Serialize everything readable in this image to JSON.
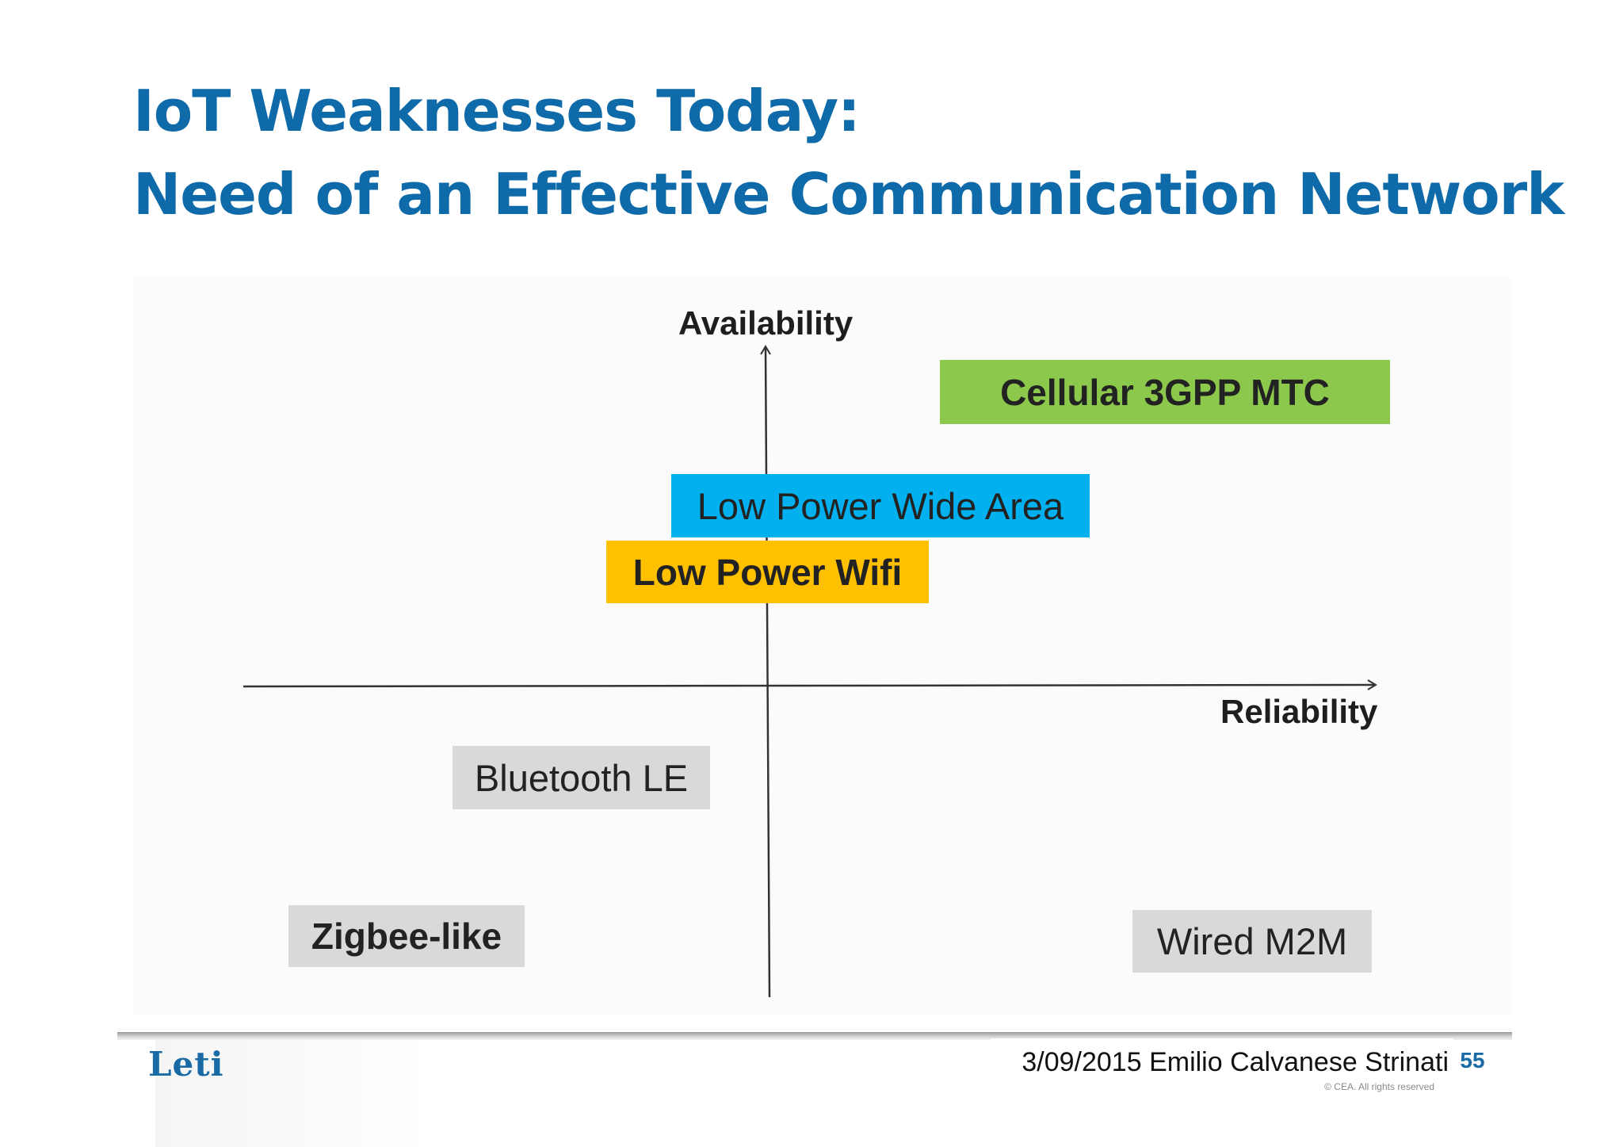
{
  "slide": {
    "title_line1": "IoT Weaknesses Today:",
    "title_line2": "Need of an Effective Communication Network"
  },
  "diagram": {
    "y_axis_label": "Availability",
    "x_axis_label": "Reliability",
    "technologies": [
      {
        "label": "Cellular 3GPP MTC",
        "color": "#8cc84b"
      },
      {
        "label": "Low Power Wide Area",
        "color": "#00b0ef"
      },
      {
        "label": "Low Power Wifi",
        "color": "#ffc000"
      },
      {
        "label": "Bluetooth LE",
        "color": "#d9d9d9"
      },
      {
        "label": "Zigbee-like",
        "color": "#d9d9d9"
      },
      {
        "label": "Wired M2M",
        "color": "#d9d9d9"
      }
    ]
  },
  "footer": {
    "logo": "Leti",
    "date_author": "3/09/2015 Emilio Calvanese Strinati",
    "page_number": "55",
    "copyright": "© CEA. All rights reserved"
  }
}
